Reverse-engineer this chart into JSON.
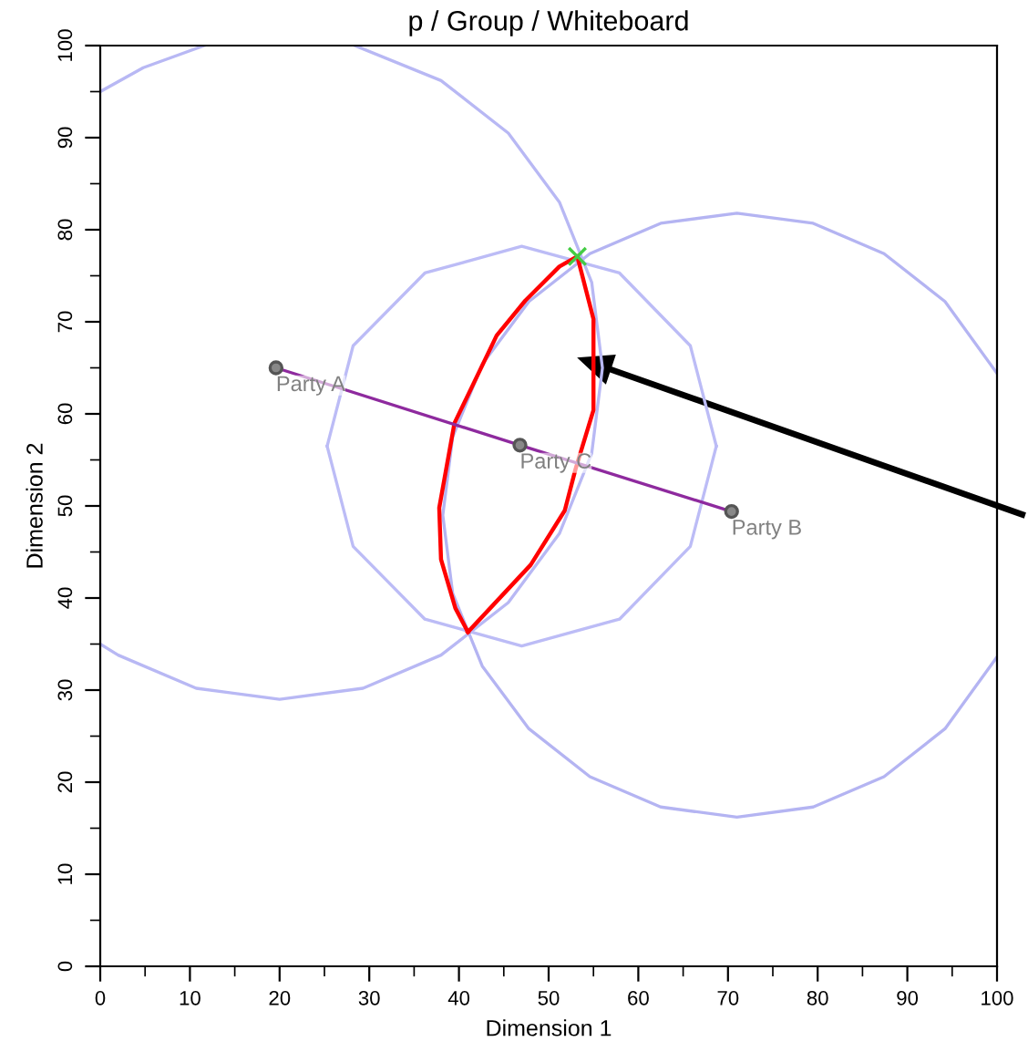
{
  "chart_data": {
    "type": "line",
    "title": "p / Group / Whiteboard",
    "xlabel": "Dimension 1",
    "ylabel": "Dimension 2",
    "xlim": [
      0,
      100
    ],
    "ylim": [
      0,
      100
    ],
    "xticks": [
      0,
      {
        "value": 5,
        "label": null
      },
      10,
      {
        "value": 15,
        "label": null
      },
      20,
      {
        "value": 25,
        "label": null
      },
      30,
      {
        "value": 35,
        "label": null
      },
      40,
      {
        "value": 45,
        "label": null
      },
      50,
      {
        "value": 55,
        "label": null
      },
      60,
      {
        "value": 65,
        "label": null
      },
      70,
      {
        "value": 75,
        "label": null
      },
      80,
      {
        "value": 85,
        "label": null
      },
      90,
      {
        "value": 95,
        "label": null
      },
      100
    ],
    "yticks": [
      0,
      {
        "value": 5,
        "label": null
      },
      10,
      {
        "value": 15,
        "label": null
      },
      20,
      {
        "value": 25,
        "label": null
      },
      30,
      {
        "value": 35,
        "label": null
      },
      40,
      {
        "value": 45,
        "label": null
      },
      50,
      {
        "value": 55,
        "label": null
      },
      60,
      {
        "value": 65,
        "label": null
      },
      70,
      {
        "value": 75,
        "label": null
      },
      80,
      {
        "value": 85,
        "label": null
      },
      90,
      {
        "value": 95,
        "label": null
      },
      100
    ],
    "grid": false,
    "legend": false,
    "line_style": "solid",
    "series": [
      {
        "color": "#b8b8f4",
        "marker": "none",
        "x": [
          0,
          4.8,
          11.6,
          null,
          28.4,
          38,
          45.5,
          51.2,
          54.8,
          56,
          54.8,
          51.2,
          45.5,
          38,
          29.3,
          20,
          10.7,
          2,
          0
        ],
        "values": [
          95,
          97.6,
          100,
          null,
          100,
          96.2,
          90.5,
          83,
          74.3,
          65,
          55.7,
          47,
          39.5,
          33.8,
          30.2,
          29,
          30.2,
          33.8,
          35
        ]
      },
      {
        "color": "#b4b4f2",
        "marker": "none",
        "x": [
          100,
          94.2,
          87.4,
          79.5,
          71,
          62.5,
          54.6,
          47.8,
          42.6,
          39.3,
          38.2,
          39.3,
          42.6,
          47.8,
          54.6,
          62.5,
          71,
          79.5,
          87.4,
          94.2,
          100
        ],
        "values": [
          64.4,
          72.2,
          77.4,
          80.7,
          81.8,
          80.7,
          77.4,
          72.2,
          65.4,
          57.5,
          49,
          40.5,
          32.6,
          25.8,
          20.6,
          17.3,
          16.2,
          17.3,
          20.6,
          25.8,
          33.6
        ]
      },
      {
        "color": "#bcbcf6",
        "marker": "none",
        "x": [
          25.3,
          28.2,
          36.2,
          47,
          57.9,
          65.8,
          68.7
        ],
        "values": [
          56.5,
          67.4,
          75.3,
          78.2,
          75.3,
          67.4,
          56.5
        ]
      },
      {
        "color": "#bcbcf6",
        "marker": "none",
        "x": [
          25.3,
          28.2,
          36.2,
          47,
          57.9,
          65.8,
          68.7
        ],
        "values": [
          56.5,
          45.6,
          37.7,
          34.8,
          37.7,
          45.6,
          56.5
        ]
      },
      {
        "color": "#ff0000",
        "marker": "none",
        "x": [
          53.2,
          51.2,
          47.4,
          44.2,
          39.5,
          37.8,
          38,
          39.6,
          41
        ],
        "values": [
          77.1,
          76,
          72.3,
          68.5,
          59,
          49.8,
          44.2,
          38.9,
          36.3
        ]
      },
      {
        "color": "#ff0000",
        "marker": "none",
        "x": [
          41,
          48,
          51.8,
          53,
          55,
          55,
          53.2
        ],
        "values": [
          36.3,
          43.6,
          49.5,
          54,
          60.4,
          70.3,
          77.1
        ]
      },
      {
        "color": "#8e2a9e",
        "marker": "none",
        "x": [
          19.6,
          46.8,
          70.4
        ],
        "values": [
          65,
          56.6,
          49.4
        ]
      },
      {
        "type": "scatter",
        "color": "#555555",
        "marker": "circle",
        "x": [
          19.6,
          46.8,
          70.4
        ],
        "values": [
          65,
          56.6,
          49.4
        ]
      },
      {
        "type": "scatter",
        "color": "#44cc44",
        "marker": "cross",
        "x": [
          53.2
        ],
        "values": [
          77.1
        ]
      }
    ],
    "annotations": [
      {
        "text": "Party A",
        "x": 19.6,
        "y": 65
      },
      {
        "text": "Party C",
        "x": 46.8,
        "y": 56.6
      },
      {
        "text": "Party B",
        "x": 70.4,
        "y": 49.4
      }
    ]
  }
}
